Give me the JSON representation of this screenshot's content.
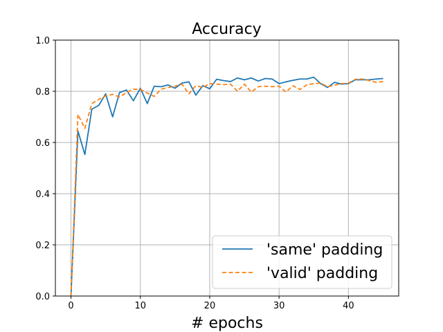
{
  "chart_data": {
    "type": "line",
    "title": "Accuracy",
    "xlabel": "# epochs",
    "ylabel": "",
    "xlim": [
      -2.25,
      47.25
    ],
    "ylim": [
      0.0,
      1.0
    ],
    "xticks": [
      0,
      10,
      20,
      30,
      40
    ],
    "yticks": [
      0.0,
      0.2,
      0.4,
      0.6,
      0.8,
      1.0
    ],
    "xtick_labels": [
      "0",
      "10",
      "20",
      "30",
      "40"
    ],
    "ytick_labels": [
      "0.0",
      "0.2",
      "0.4",
      "0.6",
      "0.8",
      "1.0"
    ],
    "grid": true,
    "legend_position": "lower-right",
    "x": [
      0,
      1,
      2,
      3,
      4,
      5,
      6,
      7,
      8,
      9,
      10,
      11,
      12,
      13,
      14,
      15,
      16,
      17,
      18,
      19,
      20,
      21,
      22,
      23,
      24,
      25,
      26,
      27,
      28,
      29,
      30,
      31,
      32,
      33,
      34,
      35,
      36,
      37,
      38,
      39,
      40,
      41,
      42,
      43,
      44,
      45
    ],
    "series": [
      {
        "name": "'same' padding",
        "color": "#1f77b4",
        "style": "solid",
        "values": [
          0.0,
          0.645,
          0.553,
          0.73,
          0.745,
          0.79,
          0.7,
          0.795,
          0.805,
          0.763,
          0.812,
          0.752,
          0.82,
          0.818,
          0.825,
          0.812,
          0.832,
          0.837,
          0.785,
          0.822,
          0.81,
          0.847,
          0.842,
          0.838,
          0.852,
          0.845,
          0.852,
          0.84,
          0.85,
          0.848,
          0.83,
          0.837,
          0.843,
          0.848,
          0.848,
          0.855,
          0.83,
          0.815,
          0.835,
          0.828,
          0.83,
          0.845,
          0.845,
          0.845,
          0.848,
          0.85
        ]
      },
      {
        "name": "'valid' padding",
        "color": "#ff7f0e",
        "style": "dashed",
        "values": [
          0.0,
          0.71,
          0.655,
          0.752,
          0.768,
          0.782,
          0.788,
          0.778,
          0.795,
          0.808,
          0.808,
          0.793,
          0.78,
          0.808,
          0.815,
          0.82,
          0.828,
          0.79,
          0.822,
          0.815,
          0.83,
          0.828,
          0.826,
          0.828,
          0.8,
          0.828,
          0.797,
          0.818,
          0.82,
          0.818,
          0.82,
          0.797,
          0.822,
          0.807,
          0.825,
          0.83,
          0.832,
          0.818,
          0.824,
          0.83,
          0.832,
          0.847,
          0.848,
          0.842,
          0.835,
          0.838
        ]
      }
    ]
  }
}
